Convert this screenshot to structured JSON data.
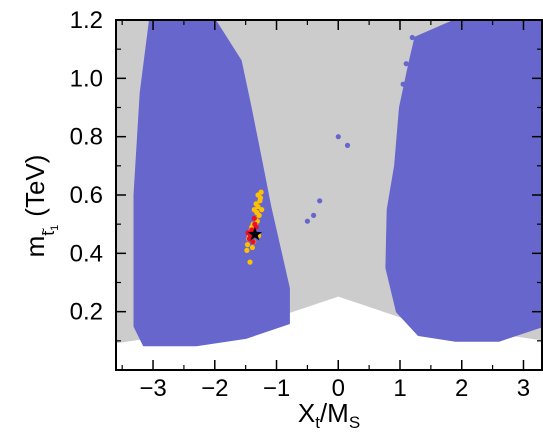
{
  "chart_data": {
    "type": "scatter",
    "title": "",
    "xlabel": {
      "main": "X",
      "sub1": "t",
      "mid": "/M",
      "sub2": "S"
    },
    "ylabel": {
      "main": "m",
      "tilde": "~",
      "sub": "t",
      "subsub": "1",
      "unit": "(TeV)"
    },
    "xlim": [
      -3.6,
      3.3
    ],
    "ylim": [
      0.0,
      1.2
    ],
    "x_ticks": [
      -3,
      -2,
      -1,
      0,
      1,
      2,
      3
    ],
    "x_tick_labels": [
      "−3",
      "−2",
      "−1",
      "0",
      "1",
      "2",
      "3"
    ],
    "y_ticks": [
      0.2,
      0.4,
      0.6,
      0.8,
      1.0,
      1.2
    ],
    "y_tick_labels": [
      "0.2",
      "0.4",
      "0.6",
      "0.8",
      "1.0",
      "1.2"
    ],
    "grid": false,
    "legend": "none",
    "colors": {
      "background_region": "#cccccc",
      "blue_points": "#6666cc",
      "orange_points": "#ffc000",
      "red_points": "#e8102a",
      "best_point": "#000000"
    },
    "regions": [
      {
        "name": "gray-allowed-region",
        "color": "#cccccc",
        "polygon": [
          [
            -3.6,
            0.095
          ],
          [
            -1.2,
            0.17
          ],
          [
            0.0,
            0.255
          ],
          [
            1.2,
            0.17
          ],
          [
            3.3,
            0.105
          ],
          [
            3.3,
            1.2
          ],
          [
            -3.6,
            1.2
          ]
        ]
      },
      {
        "name": "blue-left-lobe",
        "color": "#6666cc",
        "polygon": [
          [
            -3.05,
            1.2
          ],
          [
            -2.0,
            1.2
          ],
          [
            -1.58,
            1.06
          ],
          [
            -1.42,
            0.9
          ],
          [
            -1.25,
            0.72
          ],
          [
            -1.1,
            0.56
          ],
          [
            -0.95,
            0.42
          ],
          [
            -0.8,
            0.28
          ],
          [
            -0.8,
            0.16
          ],
          [
            -1.5,
            0.11
          ],
          [
            -2.3,
            0.085
          ],
          [
            -3.15,
            0.085
          ],
          [
            -3.3,
            0.15
          ],
          [
            -3.3,
            0.6
          ],
          [
            -3.2,
            0.95
          ]
        ]
      },
      {
        "name": "blue-right-lobe",
        "color": "#6666cc",
        "polygon": [
          [
            1.9,
            1.2
          ],
          [
            3.3,
            1.2
          ],
          [
            3.3,
            0.15
          ],
          [
            2.6,
            0.1
          ],
          [
            1.9,
            0.1
          ],
          [
            1.3,
            0.12
          ],
          [
            0.95,
            0.2
          ],
          [
            0.78,
            0.35
          ],
          [
            0.8,
            0.55
          ],
          [
            0.92,
            0.7
          ],
          [
            1.0,
            0.9
          ],
          [
            1.15,
            1.05
          ],
          [
            1.25,
            1.14
          ]
        ]
      }
    ],
    "series": [
      {
        "name": "",
        "color": "#6666cc",
        "x": [
          1.2,
          1.3,
          1.1,
          1.45,
          0.0,
          -0.3,
          -0.4,
          -0.5,
          0.15,
          1.6,
          1.35,
          1.05
        ],
        "y": [
          1.14,
          1.09,
          1.05,
          1.13,
          0.8,
          0.58,
          0.53,
          0.51,
          0.77,
          1.16,
          1.02,
          0.98
        ]
      },
      {
        "name": "",
        "color": "#ffc000",
        "x": [
          -1.25,
          -1.27,
          -1.3,
          -1.32,
          -1.35,
          -1.38,
          -1.4,
          -1.42,
          -1.45,
          -1.47,
          -1.3,
          -1.33,
          -1.36,
          -1.28,
          -1.31,
          -1.44,
          -1.41,
          -1.39,
          -1.26,
          -1.34,
          -1.37,
          -1.48,
          -1.43,
          -1.29,
          -1.24
        ],
        "y": [
          0.61,
          0.58,
          0.56,
          0.54,
          0.52,
          0.5,
          0.49,
          0.47,
          0.45,
          0.43,
          0.6,
          0.57,
          0.55,
          0.53,
          0.51,
          0.46,
          0.48,
          0.42,
          0.59,
          0.5,
          0.44,
          0.41,
          0.37,
          0.46,
          0.55
        ]
      },
      {
        "name": "",
        "color": "#e8102a",
        "x": [
          -1.35,
          -1.4,
          -1.42,
          -1.38,
          -1.36,
          -1.44,
          -1.33,
          -1.46
        ],
        "y": [
          0.5,
          0.48,
          0.46,
          0.44,
          0.52,
          0.45,
          0.49,
          0.47
        ]
      }
    ],
    "best_point": {
      "x": -1.35,
      "y": 0.465,
      "marker": "star"
    }
  }
}
